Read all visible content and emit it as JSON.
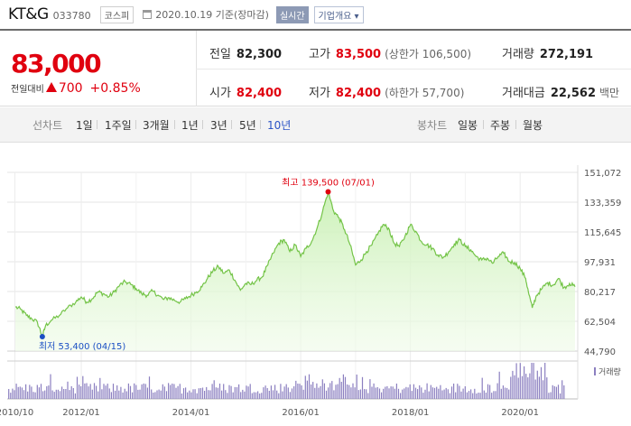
{
  "header": {
    "company": "KT&G",
    "code": "033780",
    "market_badge": "코스피",
    "date_text": "2020.10.19 기준(장마감)",
    "realtime_label": "실시간",
    "corp_info_label": "기업개요 ▾"
  },
  "quote": {
    "price": "83,000",
    "change_label": "전일대비",
    "change_value": "700",
    "change_pct": "+0.85%",
    "stats": {
      "prev_close": {
        "label": "전일",
        "value": "82,300"
      },
      "high": {
        "label": "고가",
        "value": "83,500",
        "extra": "(상한가 106,500)"
      },
      "volume": {
        "label": "거래량",
        "value": "272,191"
      },
      "open": {
        "label": "시가",
        "value": "82,400"
      },
      "low": {
        "label": "저가",
        "value": "82,400",
        "extra": "(하한가 57,700)"
      },
      "trade_value": {
        "label": "거래대금",
        "value": "22,562",
        "unit": "백만"
      }
    }
  },
  "periods": {
    "line_label": "선차트",
    "line_items": [
      "1일",
      "1주일",
      "3개월",
      "1년",
      "3년",
      "5년",
      "10년"
    ],
    "active": "10년",
    "candle_label": "봉차트",
    "candle_items": [
      "일봉",
      "주봉",
      "월봉"
    ]
  },
  "colors": {
    "up": "#e0000f",
    "line": "#74c448",
    "area_top": "#c9f0b4",
    "volume": "#8b7fc0",
    "low_marker": "#1b4fc4",
    "active_period": "#2b54c6"
  },
  "chart_data": {
    "type": "area",
    "period": "10년",
    "x_ticks": [
      "2010/10",
      "2012/01",
      "2014/01",
      "2016/01",
      "2018/01",
      "2020/01"
    ],
    "y_ticks": [
      "151,072",
      "133,359",
      "115,645",
      "97,931",
      "80,217",
      "62,504",
      "44,790"
    ],
    "ylim": [
      44790,
      151072
    ],
    "grid": true,
    "high": {
      "label": "최고",
      "value": "139,500",
      "date": "(07/01)",
      "year": 2016.5,
      "price": 139500
    },
    "low": {
      "label": "최저",
      "value": "53,400",
      "date": "(04/15)",
      "year": 2011.29,
      "price": 53400
    },
    "volume_legend": "거래량",
    "series": [
      {
        "values": [
          [
            2010.8,
            71000
          ],
          [
            2010.9,
            69500
          ],
          [
            2011.0,
            66000
          ],
          [
            2011.1,
            64000
          ],
          [
            2011.2,
            62000
          ],
          [
            2011.29,
            53400
          ],
          [
            2011.35,
            60000
          ],
          [
            2011.45,
            63000
          ],
          [
            2011.6,
            66000
          ],
          [
            2011.75,
            70500
          ],
          [
            2011.9,
            74000
          ],
          [
            2012.0,
            77000
          ],
          [
            2012.1,
            74000
          ],
          [
            2012.2,
            76000
          ],
          [
            2012.3,
            80000
          ],
          [
            2012.4,
            79000
          ],
          [
            2012.5,
            77000
          ],
          [
            2012.6,
            80000
          ],
          [
            2012.7,
            84000
          ],
          [
            2012.8,
            86000
          ],
          [
            2012.9,
            84500
          ],
          [
            2013.0,
            82000
          ],
          [
            2013.1,
            79000
          ],
          [
            2013.2,
            78000
          ],
          [
            2013.3,
            80500
          ],
          [
            2013.4,
            78000
          ],
          [
            2013.5,
            75500
          ],
          [
            2013.6,
            76500
          ],
          [
            2013.7,
            75000
          ],
          [
            2013.8,
            74000
          ],
          [
            2013.9,
            76000
          ],
          [
            2014.0,
            78000
          ],
          [
            2014.1,
            80000
          ],
          [
            2014.2,
            83000
          ],
          [
            2014.3,
            88000
          ],
          [
            2014.4,
            92500
          ],
          [
            2014.5,
            95000
          ],
          [
            2014.6,
            91000
          ],
          [
            2014.7,
            93000
          ],
          [
            2014.8,
            87000
          ],
          [
            2014.9,
            81000
          ],
          [
            2015.0,
            85000
          ],
          [
            2015.1,
            84500
          ],
          [
            2015.2,
            87000
          ],
          [
            2015.3,
            89000
          ],
          [
            2015.4,
            96000
          ],
          [
            2015.5,
            103000
          ],
          [
            2015.6,
            109000
          ],
          [
            2015.7,
            111000
          ],
          [
            2015.8,
            104000
          ],
          [
            2015.9,
            108000
          ],
          [
            2016.0,
            101000
          ],
          [
            2016.1,
            106000
          ],
          [
            2016.2,
            110000
          ],
          [
            2016.3,
            118000
          ],
          [
            2016.4,
            128000
          ],
          [
            2016.5,
            139500
          ],
          [
            2016.6,
            128000
          ],
          [
            2016.7,
            124000
          ],
          [
            2016.8,
            117000
          ],
          [
            2016.9,
            108000
          ],
          [
            2017.0,
            96000
          ],
          [
            2017.1,
            99000
          ],
          [
            2017.2,
            104000
          ],
          [
            2017.3,
            108000
          ],
          [
            2017.4,
            114000
          ],
          [
            2017.5,
            120000
          ],
          [
            2017.6,
            118000
          ],
          [
            2017.7,
            109000
          ],
          [
            2017.8,
            107000
          ],
          [
            2017.9,
            113000
          ],
          [
            2018.0,
            120000
          ],
          [
            2018.1,
            116000
          ],
          [
            2018.2,
            110000
          ],
          [
            2018.3,
            108000
          ],
          [
            2018.4,
            106000
          ],
          [
            2018.5,
            102000
          ],
          [
            2018.6,
            100500
          ],
          [
            2018.7,
            104000
          ],
          [
            2018.8,
            108500
          ],
          [
            2018.9,
            111000
          ],
          [
            2019.0,
            107000
          ],
          [
            2019.1,
            105000
          ],
          [
            2019.2,
            101000
          ],
          [
            2019.3,
            99000
          ],
          [
            2019.4,
            100000
          ],
          [
            2019.5,
            97000
          ],
          [
            2019.6,
            101000
          ],
          [
            2019.7,
            103000
          ],
          [
            2019.8,
            98000
          ],
          [
            2019.9,
            97500
          ],
          [
            2020.0,
            94000
          ],
          [
            2020.1,
            88000
          ],
          [
            2020.15,
            80000
          ],
          [
            2020.22,
            70500
          ],
          [
            2020.3,
            78000
          ],
          [
            2020.4,
            82000
          ],
          [
            2020.5,
            85500
          ],
          [
            2020.6,
            84000
          ],
          [
            2020.7,
            88000
          ],
          [
            2020.8,
            82500
          ],
          [
            2020.9,
            85000
          ],
          [
            2021.0,
            83000
          ]
        ]
      }
    ]
  }
}
